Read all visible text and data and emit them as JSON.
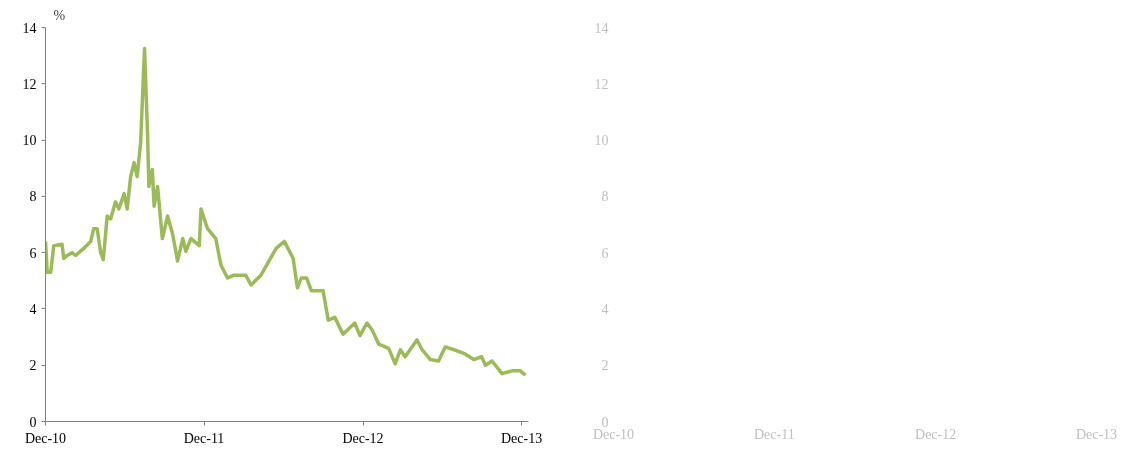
{
  "chart_data": [
    {
      "type": "line",
      "ylabel": "%",
      "xlim": [
        "2010-12-01",
        "2013-12-17"
      ],
      "ylim": [
        0,
        14
      ],
      "yticks": [
        0,
        2,
        4,
        6,
        8,
        10,
        12,
        14
      ],
      "xticks": [
        {
          "value": "2010-12-01",
          "label": "Dec-10"
        },
        {
          "value": "2011-12-01",
          "label": "Dec-11"
        },
        {
          "value": "2012-12-01",
          "label": "Dec-12"
        },
        {
          "value": "2013-12-01",
          "label": "Dec-13"
        }
      ],
      "grid": false,
      "marker": "none",
      "line_style": "solid",
      "series": [
        {
          "color": "#9bbb59",
          "x": [
            "2010-12-01",
            "2010-12-05",
            "2010-12-13",
            "2010-12-20",
            "2011-01-08",
            "2011-01-12",
            "2011-01-20",
            "2011-01-31",
            "2011-02-08",
            "2011-02-27",
            "2011-03-15",
            "2011-03-22",
            "2011-03-30",
            "2011-04-07",
            "2011-04-13",
            "2011-04-22",
            "2011-04-30",
            "2011-05-11",
            "2011-05-19",
            "2011-05-31",
            "2011-06-07",
            "2011-06-15",
            "2011-06-23",
            "2011-06-30",
            "2011-07-08",
            "2011-07-17",
            "2011-07-24",
            "2011-07-27",
            "2011-08-04",
            "2011-08-08",
            "2011-08-16",
            "2011-08-27",
            "2011-09-08",
            "2011-09-19",
            "2011-09-27",
            "2011-10-01",
            "2011-10-13",
            "2011-10-20",
            "2011-11-01",
            "2011-11-20",
            "2011-11-24",
            "2011-12-09",
            "2011-12-28",
            "2012-01-09",
            "2012-01-24",
            "2012-02-08",
            "2012-03-06",
            "2012-03-18",
            "2012-04-10",
            "2012-05-15",
            "2012-06-03",
            "2012-06-23",
            "2012-07-03",
            "2012-07-12",
            "2012-07-24",
            "2012-08-04",
            "2012-08-31",
            "2012-09-12",
            "2012-09-27",
            "2012-10-16",
            "2012-11-12",
            "2012-11-24",
            "2012-12-10",
            "2012-12-22",
            "2013-01-06",
            "2013-01-29",
            "2013-02-13",
            "2013-02-25",
            "2013-03-08",
            "2013-04-04",
            "2013-04-16",
            "2013-05-05",
            "2013-05-24",
            "2013-06-08",
            "2013-06-28",
            "2013-07-24",
            "2013-08-13",
            "2013-08-31",
            "2013-09-09",
            "2013-09-24",
            "2013-10-17",
            "2013-11-09",
            "2013-11-28",
            "2013-12-10"
          ],
          "values": [
            6.4,
            5.3,
            5.3,
            6.25,
            6.3,
            5.8,
            5.9,
            6.0,
            5.9,
            6.15,
            6.4,
            6.85,
            6.85,
            6.0,
            5.75,
            7.3,
            7.2,
            7.8,
            7.55,
            8.1,
            7.55,
            8.7,
            9.2,
            8.7,
            9.9,
            13.25,
            10.2,
            8.35,
            8.95,
            7.65,
            8.35,
            6.5,
            7.3,
            6.7,
            6.05,
            5.7,
            6.5,
            6.05,
            6.5,
            6.25,
            7.55,
            6.85,
            6.5,
            5.55,
            5.1,
            5.2,
            5.2,
            4.85,
            5.2,
            6.15,
            6.4,
            5.8,
            4.75,
            5.1,
            5.1,
            4.65,
            4.65,
            3.6,
            3.7,
            3.1,
            3.5,
            3.05,
            3.5,
            3.25,
            2.75,
            2.6,
            2.05,
            2.55,
            2.3,
            2.9,
            2.55,
            2.2,
            2.15,
            2.65,
            2.55,
            2.4,
            2.2,
            2.3,
            2.0,
            2.15,
            1.7,
            1.8,
            1.8,
            1.65
          ]
        }
      ]
    },
    {
      "type": "line",
      "xlim": [
        "2010-12-01",
        "2013-12-01"
      ],
      "ylim": [
        0,
        14
      ],
      "yticks": [
        0,
        2,
        4,
        6,
        8,
        10,
        12,
        14
      ],
      "xticks": [
        {
          "value": "2010-12-01",
          "label": "Dec-10"
        },
        {
          "value": "2011-12-01",
          "label": "Dec-11"
        },
        {
          "value": "2012-12-01",
          "label": "Dec-12"
        },
        {
          "value": "2013-12-01",
          "label": "Dec-13"
        }
      ],
      "grid": false
    }
  ]
}
